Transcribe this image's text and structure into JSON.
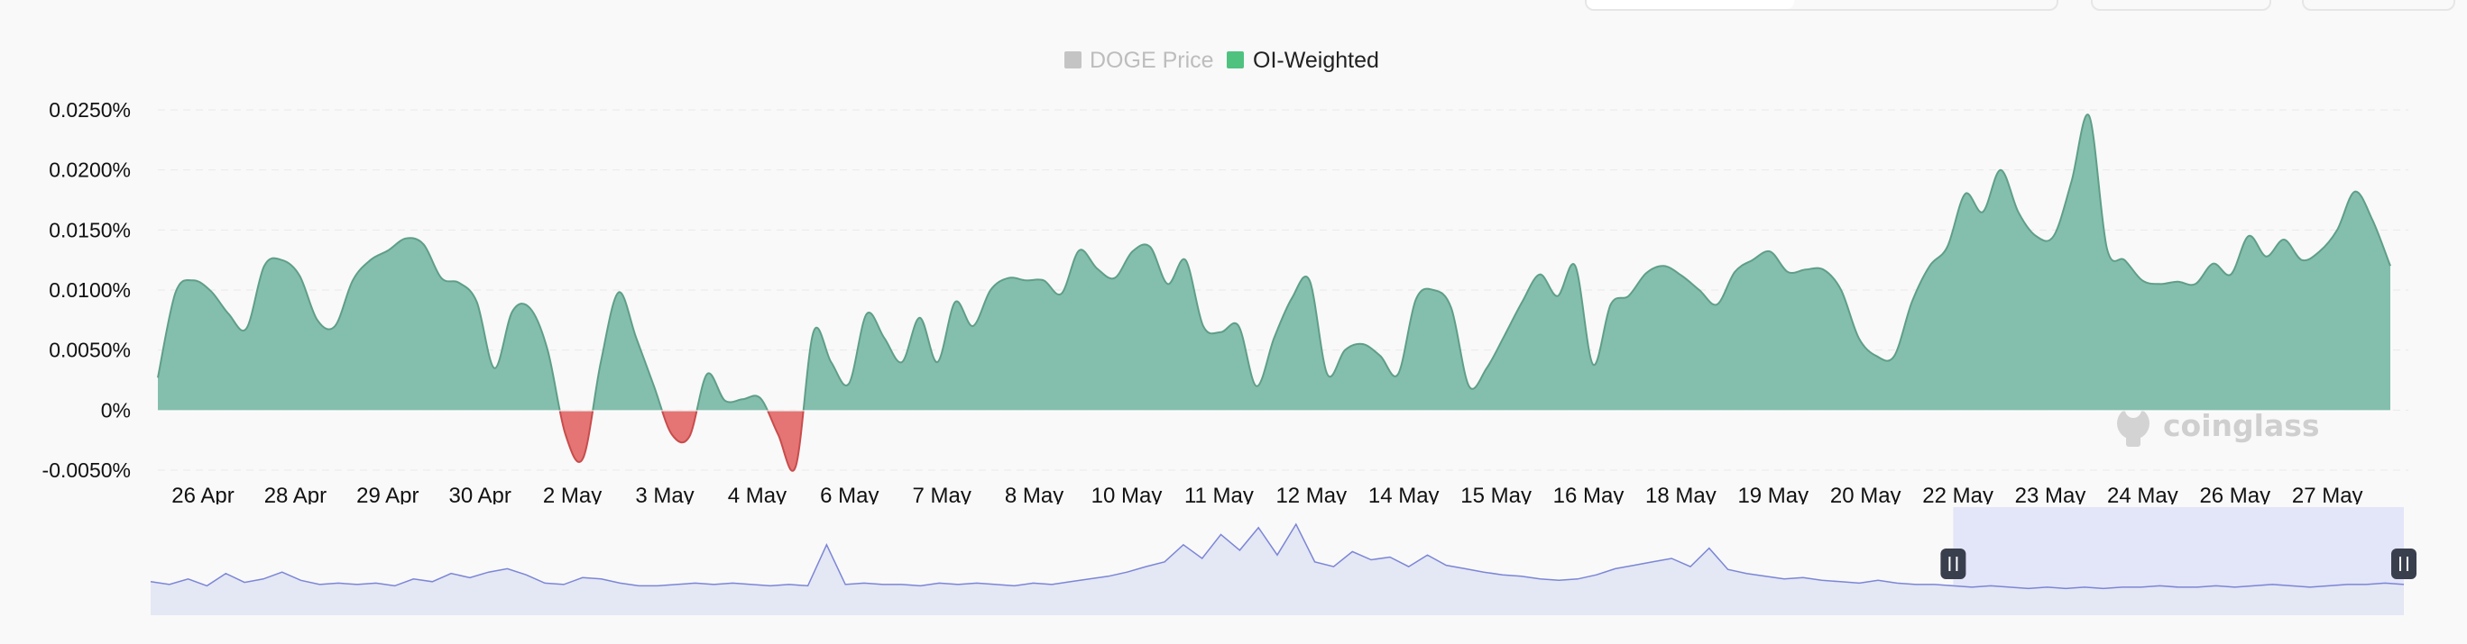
{
  "colors": {
    "positive": "#84bfae",
    "positive_stroke": "#5f9e88",
    "negative": "#e57575",
    "negative_stroke": "#c84c4c",
    "grid": "#e9e9e9",
    "legend_inactive": "#c4c4c4",
    "legend_active": "#4fc27f",
    "navigator_fill": "#e4e7f4",
    "navigator_line": "#7b86d6",
    "navigator_selection": "#dfe2f8",
    "handle": "#3a3f4e"
  },
  "legend": [
    {
      "label": "DOGE Price",
      "active": false
    },
    {
      "label": "OI-Weighted",
      "active": true
    }
  ],
  "watermark": "coinglass",
  "chart_data": {
    "type": "area",
    "yticks": [
      "0.0250%",
      "0.0200%",
      "0.0150%",
      "0.0100%",
      "0.0050%",
      "0%",
      "-0.0050%"
    ],
    "ylim": [
      -0.005,
      0.025
    ],
    "xticks": [
      "26 Apr",
      "28 Apr",
      "29 Apr",
      "30 Apr",
      "2 May",
      "3 May",
      "4 May",
      "6 May",
      "7 May",
      "8 May",
      "10 May",
      "11 May",
      "12 May",
      "14 May",
      "15 May",
      "16 May",
      "18 May",
      "19 May",
      "20 May",
      "22 May",
      "23 May",
      "24 May",
      "26 May",
      "27 May"
    ],
    "grid": "horizontal",
    "legend_position": "top-center",
    "series": [
      {
        "name": "OI-Weighted",
        "values": [
          0.0027,
          0.0098,
          0.0108,
          0.0099,
          0.008,
          0.0068,
          0.012,
          0.0125,
          0.0112,
          0.0075,
          0.007,
          0.0108,
          0.0125,
          0.0133,
          0.0143,
          0.0138,
          0.011,
          0.0106,
          0.009,
          0.0035,
          0.0082,
          0.0085,
          0.005,
          -0.002,
          -0.004,
          0.004,
          0.0098,
          0.006,
          0.002,
          -0.002,
          -0.0022,
          0.003,
          0.0008,
          0.0009,
          0.001,
          -0.002,
          -0.0047,
          0.0065,
          0.004,
          0.0022,
          0.008,
          0.006,
          0.004,
          0.0077,
          0.004,
          0.009,
          0.007,
          0.01,
          0.011,
          0.0108,
          0.0108,
          0.0097,
          0.0133,
          0.0118,
          0.011,
          0.0132,
          0.0136,
          0.0105,
          0.0125,
          0.007,
          0.0065,
          0.007,
          0.002,
          0.006,
          0.0093,
          0.0108,
          0.003,
          0.005,
          0.0055,
          0.0045,
          0.003,
          0.0092,
          0.01,
          0.0085,
          0.002,
          0.0035,
          0.0062,
          0.009,
          0.0113,
          0.0095,
          0.012,
          0.0038,
          0.0088,
          0.0095,
          0.0114,
          0.012,
          0.0112,
          0.01,
          0.0088,
          0.0115,
          0.0125,
          0.0132,
          0.0115,
          0.0117,
          0.0117,
          0.01,
          0.006,
          0.0045,
          0.0045,
          0.009,
          0.012,
          0.0136,
          0.018,
          0.0165,
          0.02,
          0.0165,
          0.0145,
          0.0145,
          0.019,
          0.0245,
          0.0135,
          0.0125,
          0.0108,
          0.0105,
          0.0107,
          0.0105,
          0.0122,
          0.0113,
          0.0145,
          0.0128,
          0.0142,
          0.0125,
          0.0132,
          0.015,
          0.0182,
          0.0158,
          0.012
        ]
      }
    ],
    "navigator": {
      "values": [
        0.16,
        0.12,
        0.2,
        0.1,
        0.28,
        0.15,
        0.2,
        0.3,
        0.18,
        0.12,
        0.14,
        0.12,
        0.14,
        0.1,
        0.2,
        0.16,
        0.28,
        0.22,
        0.3,
        0.35,
        0.26,
        0.14,
        0.12,
        0.22,
        0.2,
        0.14,
        0.1,
        0.1,
        0.12,
        0.14,
        0.12,
        0.14,
        0.12,
        0.1,
        0.12,
        0.1,
        0.7,
        0.12,
        0.14,
        0.12,
        0.12,
        0.1,
        0.14,
        0.12,
        0.14,
        0.12,
        0.1,
        0.14,
        0.12,
        0.16,
        0.2,
        0.24,
        0.3,
        0.38,
        0.45,
        0.7,
        0.5,
        0.85,
        0.62,
        0.95,
        0.55,
        1.0,
        0.45,
        0.38,
        0.6,
        0.48,
        0.52,
        0.38,
        0.55,
        0.4,
        0.35,
        0.3,
        0.26,
        0.24,
        0.2,
        0.18,
        0.2,
        0.26,
        0.35,
        0.4,
        0.45,
        0.5,
        0.38,
        0.65,
        0.34,
        0.28,
        0.24,
        0.2,
        0.22,
        0.18,
        0.16,
        0.14,
        0.18,
        0.14,
        0.12,
        0.12,
        0.1,
        0.08,
        0.1,
        0.08,
        0.06,
        0.08,
        0.06,
        0.08,
        0.06,
        0.08,
        0.08,
        0.1,
        0.08,
        0.08,
        0.1,
        0.08,
        0.1,
        0.12,
        0.1,
        0.08,
        0.1,
        0.12,
        0.12,
        0.14,
        0.12
      ],
      "selection_start": 0.8,
      "selection_end": 1.0
    }
  }
}
